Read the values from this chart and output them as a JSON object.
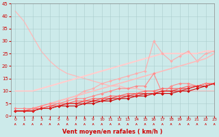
{
  "title": "",
  "xlabel": "Vent moyen/en rafales ( km/h )",
  "ylabel": "",
  "bg_color": "#cceaea",
  "grid_color": "#aacccc",
  "xlim": [
    -0.5,
    23
  ],
  "ylim": [
    0,
    45
  ],
  "yticks": [
    0,
    5,
    10,
    15,
    20,
    25,
    30,
    35,
    40,
    45
  ],
  "xticks": [
    0,
    1,
    2,
    3,
    4,
    5,
    6,
    7,
    8,
    9,
    10,
    11,
    12,
    13,
    14,
    15,
    16,
    17,
    18,
    19,
    20,
    21,
    22,
    23
  ],
  "lines": [
    {
      "x": [
        0,
        1,
        2,
        3,
        4,
        5,
        6,
        7,
        8,
        9,
        10,
        11,
        12,
        13,
        14,
        15,
        16,
        17,
        18,
        19,
        20,
        21,
        22,
        23
      ],
      "y": [
        10,
        10,
        10,
        11,
        12,
        13,
        14,
        15,
        16,
        17,
        18,
        19,
        20,
        21,
        22,
        23,
        24,
        25,
        25,
        25,
        25,
        25,
        26,
        26
      ],
      "color": "#ffdddd",
      "lw": 1.5,
      "marker": null,
      "ms": 0,
      "zorder": 1
    },
    {
      "x": [
        0,
        1,
        2,
        3,
        4,
        5,
        6,
        7,
        8,
        9,
        10,
        11,
        12,
        13,
        14,
        15,
        16,
        17,
        18,
        19,
        20,
        21,
        22,
        23
      ],
      "y": [
        10,
        10,
        10,
        11,
        12,
        13,
        14,
        15,
        16,
        17,
        18,
        19,
        20,
        21,
        22,
        23,
        24,
        25,
        25,
        25,
        25,
        25,
        26,
        26
      ],
      "color": "#ffcccc",
      "lw": 1.2,
      "marker": null,
      "ms": 0,
      "zorder": 2
    },
    {
      "x": [
        0,
        1,
        2,
        3,
        4,
        5,
        6,
        7,
        8,
        9,
        10,
        11,
        12,
        13,
        14,
        15,
        16,
        17,
        18,
        19,
        20,
        21,
        22,
        23
      ],
      "y": [
        2,
        2,
        3,
        4,
        5,
        6,
        7,
        8,
        10,
        11,
        13,
        14,
        15,
        16,
        17,
        18,
        30,
        25,
        22,
        24,
        26,
        22,
        25,
        26
      ],
      "color": "#ffaaaa",
      "lw": 0.8,
      "marker": "D",
      "ms": 2,
      "zorder": 2
    },
    {
      "x": [
        0,
        1,
        2,
        3,
        4,
        5,
        6,
        7,
        8,
        9,
        10,
        11,
        12,
        13,
        14,
        15,
        16,
        17,
        18,
        19,
        20,
        21,
        22,
        23
      ],
      "y": [
        2,
        2,
        3,
        4,
        5,
        6,
        7,
        8,
        9,
        10,
        11,
        12,
        13,
        14,
        15,
        16,
        17,
        18,
        19,
        20,
        21,
        22,
        23,
        25
      ],
      "color": "#ffbbbb",
      "lw": 1.2,
      "marker": null,
      "ms": 0,
      "zorder": 2
    },
    {
      "x": [
        0,
        1,
        2,
        3,
        4,
        5,
        6,
        7,
        8,
        9,
        10,
        11,
        12,
        13,
        14,
        15,
        16,
        17,
        18,
        19,
        20,
        21,
        22,
        23
      ],
      "y": [
        2,
        2,
        2,
        3,
        3,
        4,
        4,
        4,
        5,
        5,
        6,
        6,
        7,
        7,
        8,
        8,
        9,
        9,
        9,
        10,
        10,
        11,
        12,
        13
      ],
      "color": "#cc0000",
      "lw": 0.8,
      "marker": "D",
      "ms": 2,
      "zorder": 4
    },
    {
      "x": [
        0,
        1,
        2,
        3,
        4,
        5,
        6,
        7,
        8,
        9,
        10,
        11,
        12,
        13,
        14,
        15,
        16,
        17,
        18,
        19,
        20,
        21,
        22,
        23
      ],
      "y": [
        2,
        2,
        2,
        3,
        3,
        4,
        5,
        5,
        5,
        6,
        6,
        7,
        7,
        8,
        8,
        9,
        9,
        10,
        10,
        10,
        11,
        12,
        12,
        13
      ],
      "color": "#dd2222",
      "lw": 0.8,
      "marker": "D",
      "ms": 2,
      "zorder": 4
    },
    {
      "x": [
        0,
        1,
        2,
        3,
        4,
        5,
        6,
        7,
        8,
        9,
        10,
        11,
        12,
        13,
        14,
        15,
        16,
        17,
        18,
        19,
        20,
        21,
        22,
        23
      ],
      "y": [
        2,
        2,
        2,
        3,
        4,
        4,
        5,
        5,
        6,
        6,
        7,
        7,
        8,
        8,
        9,
        9,
        9,
        10,
        10,
        11,
        11,
        12,
        13,
        13
      ],
      "color": "#ee4444",
      "lw": 0.8,
      "marker": "D",
      "ms": 2,
      "zorder": 3
    },
    {
      "x": [
        0,
        1,
        2,
        3,
        4,
        5,
        6,
        7,
        8,
        9,
        10,
        11,
        12,
        13,
        14,
        15,
        16,
        17,
        18,
        19,
        20,
        21,
        22,
        23
      ],
      "y": [
        2,
        2,
        3,
        3,
        4,
        5,
        5,
        6,
        6,
        7,
        7,
        8,
        8,
        9,
        9,
        10,
        10,
        11,
        11,
        11,
        12,
        12,
        13,
        13
      ],
      "color": "#ff6666",
      "lw": 0.8,
      "marker": "D",
      "ms": 2,
      "zorder": 3
    },
    {
      "x": [
        0,
        1,
        2,
        3,
        4,
        5,
        6,
        7,
        8,
        9,
        10,
        11,
        12,
        13,
        14,
        15,
        16,
        17,
        18,
        19,
        20,
        21,
        22,
        23
      ],
      "y": [
        3,
        3,
        3,
        4,
        5,
        5,
        6,
        7,
        7,
        8,
        9,
        10,
        11,
        11,
        12,
        12,
        17,
        9,
        12,
        13,
        13,
        12,
        13,
        13
      ],
      "color": "#ff8888",
      "lw": 0.8,
      "marker": "D",
      "ms": 2,
      "zorder": 3
    },
    {
      "x": [
        0,
        1,
        2,
        3,
        4,
        5,
        6,
        7,
        8,
        9,
        10,
        11,
        12,
        13,
        14,
        15,
        16,
        17,
        18,
        19,
        20,
        21,
        22,
        23
      ],
      "y": [
        42,
        38,
        32,
        26,
        22,
        19,
        17,
        16,
        15,
        14,
        13,
        12,
        12,
        11,
        11,
        10,
        10,
        10,
        10,
        10,
        10,
        10,
        10,
        10
      ],
      "color": "#ffbbbb",
      "lw": 1.0,
      "marker": null,
      "ms": 0,
      "zorder": 1
    }
  ],
  "wind_arrow_color": "#cc0000"
}
